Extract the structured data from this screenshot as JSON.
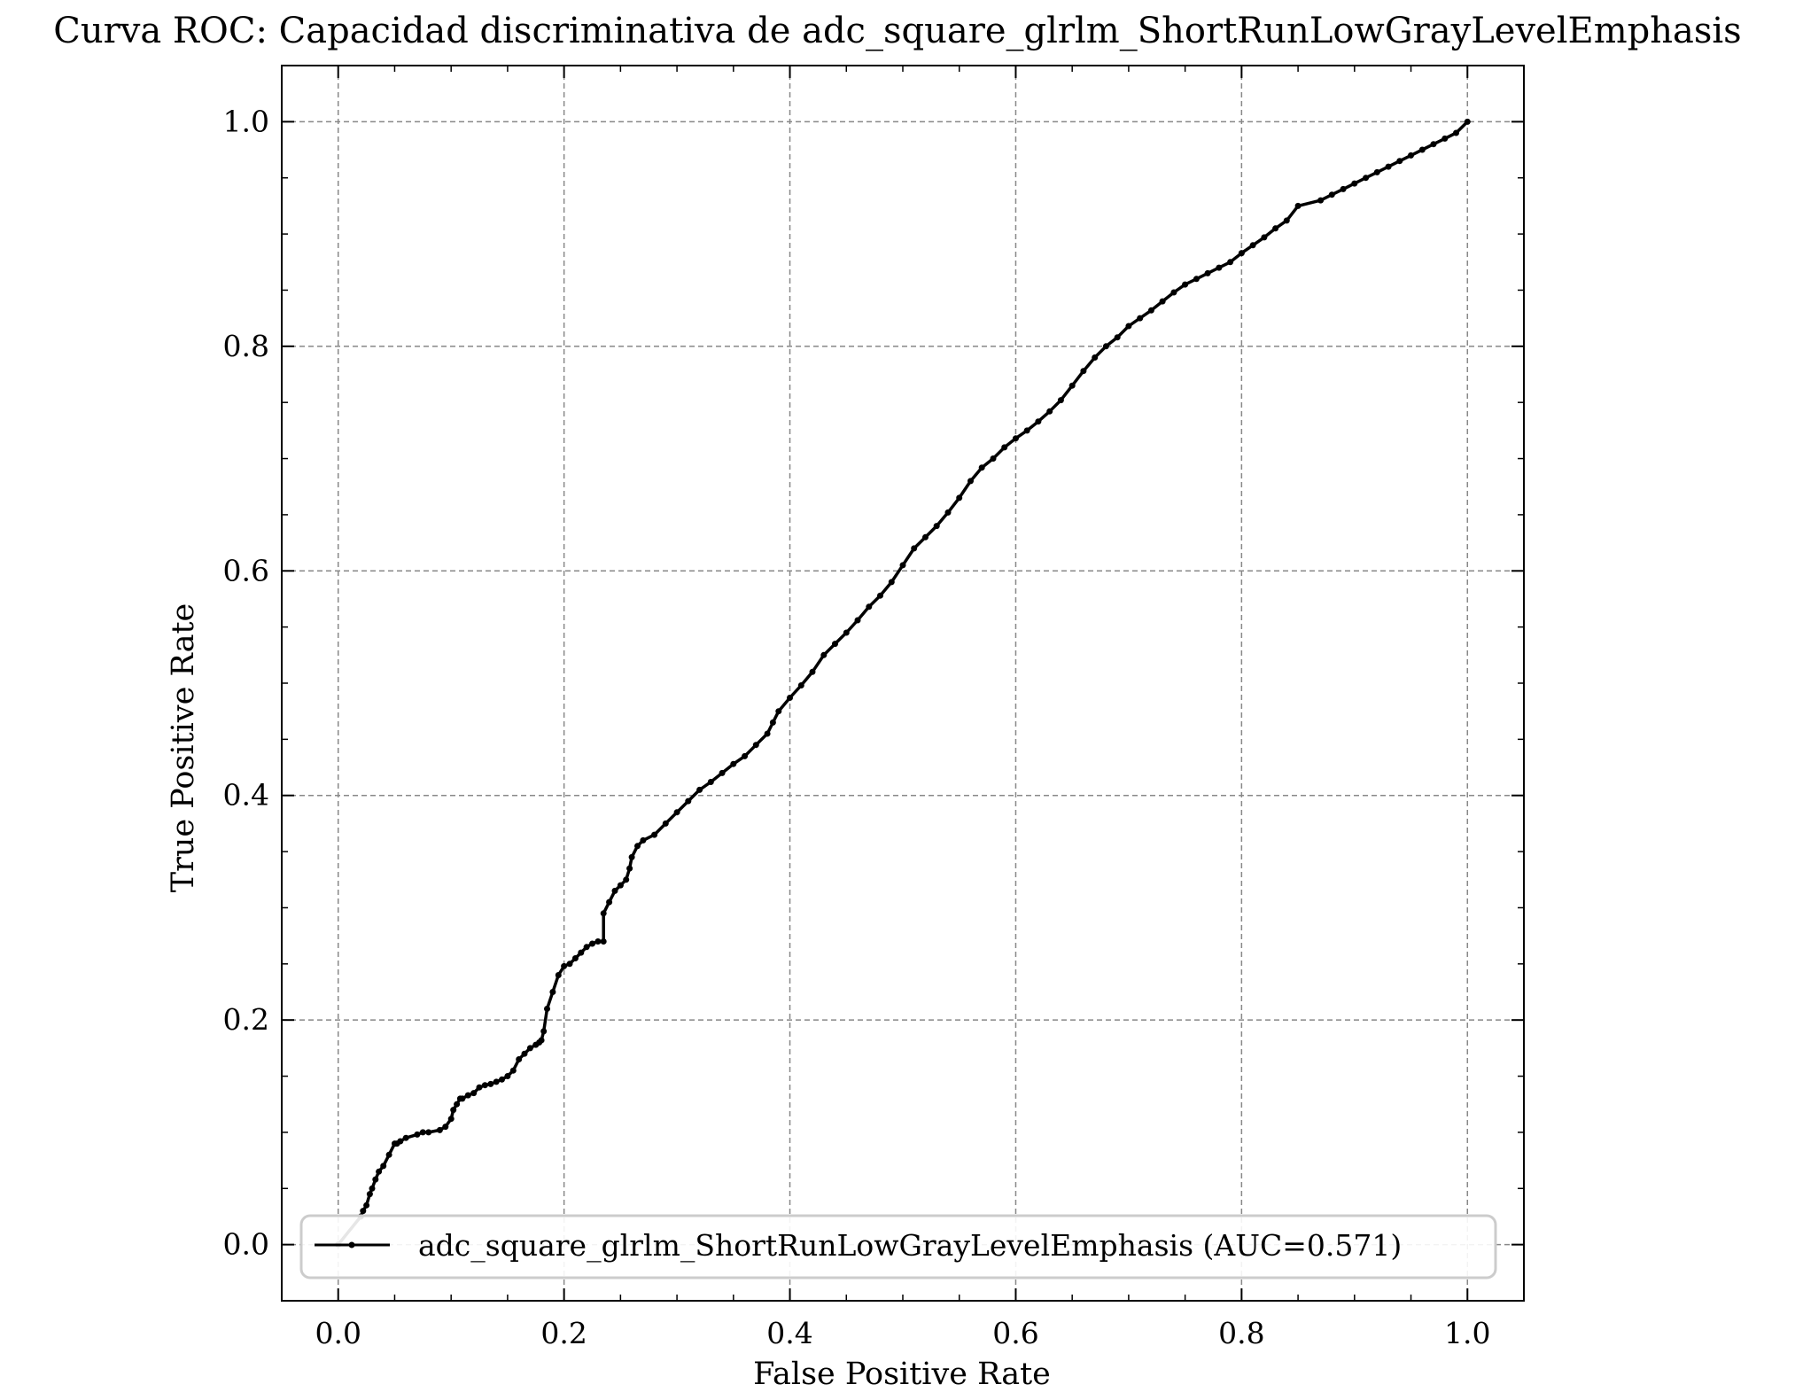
{
  "chart_data": {
    "type": "line",
    "title": "Curva ROC: Capacidad discriminativa de adc_square_glrlm_ShortRunLowGrayLevelEmphasis",
    "xlabel": "False Positive Rate",
    "ylabel": "True Positive Rate",
    "xlim": [
      -0.05,
      1.05
    ],
    "ylim": [
      -0.05,
      1.05
    ],
    "xticks": [
      0.0,
      0.2,
      0.4,
      0.6,
      0.8,
      1.0
    ],
    "xtick_labels": [
      "0.0",
      "0.2",
      "0.4",
      "0.6",
      "0.8",
      "1.0"
    ],
    "yticks": [
      0.0,
      0.2,
      0.4,
      0.6,
      0.8,
      1.0
    ],
    "ytick_labels": [
      "0.0",
      "0.2",
      "0.4",
      "0.6",
      "0.8",
      "1.0"
    ],
    "grid": true,
    "legend_position": "bottom-center",
    "series": [
      {
        "name": "adc_square_glrlm_ShortRunLowGrayLevelEmphasis (AUC=0.571)",
        "color": "#000000",
        "marker": "dot",
        "x": [
          0.0,
          0.02,
          0.022,
          0.025,
          0.028,
          0.03,
          0.033,
          0.036,
          0.04,
          0.045,
          0.05,
          0.052,
          0.055,
          0.06,
          0.07,
          0.075,
          0.08,
          0.09,
          0.095,
          0.1,
          0.102,
          0.105,
          0.108,
          0.11,
          0.115,
          0.12,
          0.125,
          0.13,
          0.135,
          0.14,
          0.145,
          0.15,
          0.155,
          0.16,
          0.165,
          0.17,
          0.175,
          0.178,
          0.18,
          0.182,
          0.185,
          0.19,
          0.195,
          0.2,
          0.205,
          0.21,
          0.215,
          0.22,
          0.225,
          0.23,
          0.235,
          0.235,
          0.24,
          0.245,
          0.25,
          0.255,
          0.258,
          0.26,
          0.265,
          0.27,
          0.28,
          0.29,
          0.3,
          0.31,
          0.32,
          0.33,
          0.34,
          0.35,
          0.36,
          0.37,
          0.38,
          0.385,
          0.39,
          0.4,
          0.41,
          0.42,
          0.43,
          0.44,
          0.45,
          0.46,
          0.47,
          0.48,
          0.49,
          0.5,
          0.51,
          0.52,
          0.53,
          0.54,
          0.55,
          0.56,
          0.57,
          0.58,
          0.59,
          0.6,
          0.61,
          0.62,
          0.63,
          0.64,
          0.65,
          0.66,
          0.67,
          0.68,
          0.69,
          0.7,
          0.71,
          0.72,
          0.73,
          0.74,
          0.75,
          0.76,
          0.77,
          0.78,
          0.79,
          0.8,
          0.81,
          0.82,
          0.83,
          0.84,
          0.85,
          0.87,
          0.88,
          0.89,
          0.9,
          0.91,
          0.92,
          0.93,
          0.94,
          0.95,
          0.96,
          0.97,
          0.98,
          0.99,
          1.0
        ],
        "y": [
          0.0,
          0.025,
          0.03,
          0.035,
          0.045,
          0.05,
          0.058,
          0.065,
          0.07,
          0.08,
          0.09,
          0.09,
          0.092,
          0.095,
          0.098,
          0.1,
          0.1,
          0.102,
          0.105,
          0.112,
          0.12,
          0.125,
          0.13,
          0.13,
          0.133,
          0.135,
          0.14,
          0.142,
          0.143,
          0.145,
          0.147,
          0.15,
          0.155,
          0.165,
          0.17,
          0.175,
          0.178,
          0.18,
          0.182,
          0.19,
          0.21,
          0.225,
          0.24,
          0.248,
          0.25,
          0.255,
          0.26,
          0.265,
          0.268,
          0.27,
          0.27,
          0.295,
          0.305,
          0.315,
          0.32,
          0.325,
          0.335,
          0.345,
          0.355,
          0.36,
          0.365,
          0.375,
          0.385,
          0.395,
          0.405,
          0.412,
          0.42,
          0.428,
          0.435,
          0.445,
          0.455,
          0.465,
          0.475,
          0.487,
          0.498,
          0.51,
          0.525,
          0.535,
          0.545,
          0.556,
          0.568,
          0.578,
          0.59,
          0.605,
          0.62,
          0.63,
          0.64,
          0.652,
          0.665,
          0.68,
          0.692,
          0.7,
          0.71,
          0.718,
          0.725,
          0.733,
          0.742,
          0.752,
          0.765,
          0.778,
          0.79,
          0.8,
          0.808,
          0.818,
          0.825,
          0.832,
          0.84,
          0.848,
          0.855,
          0.86,
          0.865,
          0.87,
          0.875,
          0.883,
          0.89,
          0.897,
          0.905,
          0.912,
          0.925,
          0.93,
          0.935,
          0.94,
          0.945,
          0.95,
          0.955,
          0.96,
          0.965,
          0.97,
          0.975,
          0.98,
          0.985,
          0.99,
          1.0
        ]
      }
    ]
  }
}
